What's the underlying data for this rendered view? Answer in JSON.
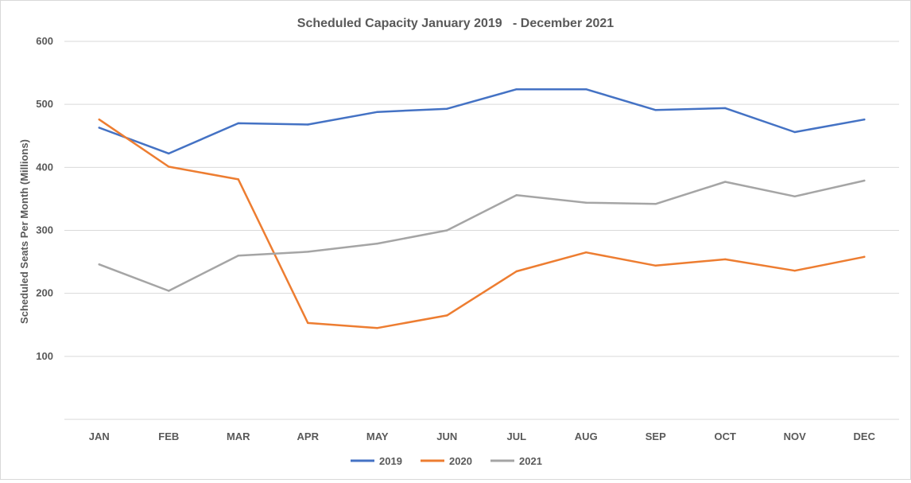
{
  "chart_data": {
    "type": "line",
    "title": "Scheduled Capacity January 2019   - December 2021",
    "xlabel": "",
    "ylabel": "Scheduled Seats Per Month (Millions)",
    "categories": [
      "JAN",
      "FEB",
      "MAR",
      "APR",
      "MAY",
      "JUN",
      "JUL",
      "AUG",
      "SEP",
      "OCT",
      "NOV",
      "DEC"
    ],
    "ylim": [
      0,
      600
    ],
    "yticks": [
      100,
      200,
      300,
      400,
      500,
      600
    ],
    "ytick_labels": [
      "100",
      "200",
      "300",
      "400",
      "500",
      "600"
    ],
    "grid": true,
    "legend_position": "bottom",
    "series": [
      {
        "name": "2019",
        "color": "#4472c4",
        "values": [
          463,
          422,
          470,
          468,
          488,
          493,
          524,
          524,
          491,
          494,
          456,
          476
        ]
      },
      {
        "name": "2020",
        "color": "#ed7d31",
        "values": [
          476,
          401,
          381,
          153,
          145,
          165,
          235,
          265,
          244,
          254,
          236,
          258
        ]
      },
      {
        "name": "2021",
        "color": "#a5a5a5",
        "values": [
          246,
          204,
          260,
          266,
          279,
          300,
          356,
          344,
          342,
          377,
          354,
          379
        ]
      }
    ]
  }
}
